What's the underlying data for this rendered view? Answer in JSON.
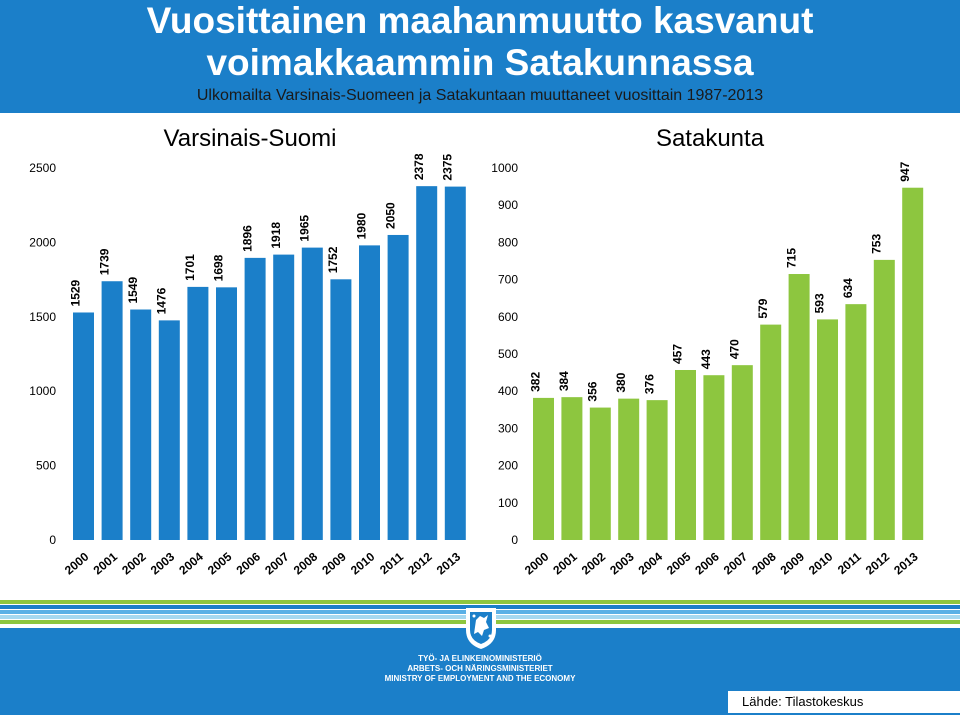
{
  "header": {
    "title_line1": "Vuosittainen maahanmuutto kasvanut",
    "title_line2": "voimakkaammin Satakunnassa",
    "subtitle": "Ulkomailta Varsinais-Suomeen ja Satakuntaan muuttaneet vuosittain 1987-2013"
  },
  "footer": {
    "ministry_fi": "TYÖ- JA ELINKEINOMINISTERIÖ",
    "ministry_sv": "ARBETS- OCH NÄRINGSMINISTERIET",
    "ministry_en": "MINISTRY OF EMPLOYMENT AND THE ECONOMY",
    "source": "Lähde: Tilastokeskus",
    "logo_icon": "finnish-lion-crest-icon",
    "stripe_colors": [
      "#8dc63f",
      "#1b7fc9",
      "#5bb0e6",
      "#a6d8f0"
    ]
  },
  "colors": {
    "header_bg": "#1b7fc9",
    "bar_blue": "#1b7fc9",
    "bar_green": "#8dc63f"
  },
  "chart_data": [
    {
      "type": "bar",
      "title": "Varsinais-Suomi",
      "categories": [
        "2000",
        "2001",
        "2002",
        "2003",
        "2004",
        "2005",
        "2006",
        "2007",
        "2008",
        "2009",
        "2010",
        "2011",
        "2012",
        "2013"
      ],
      "values": [
        1529,
        1739,
        1549,
        1476,
        1701,
        1698,
        1896,
        1918,
        1965,
        1752,
        1980,
        2050,
        2378,
        2375
      ],
      "yticks": [
        0,
        500,
        1000,
        1500,
        2000,
        2500
      ],
      "ylim": [
        0,
        2500
      ],
      "color": "#1b7fc9",
      "grid": false
    },
    {
      "type": "bar",
      "title": "Satakunta",
      "categories": [
        "2000",
        "2001",
        "2002",
        "2003",
        "2004",
        "2005",
        "2006",
        "2007",
        "2008",
        "2009",
        "2010",
        "2011",
        "2012",
        "2013"
      ],
      "values": [
        382,
        384,
        356,
        380,
        376,
        457,
        443,
        470,
        579,
        715,
        593,
        634,
        753,
        947
      ],
      "yticks": [
        0,
        100,
        200,
        300,
        400,
        500,
        600,
        700,
        800,
        900,
        1000
      ],
      "ylim": [
        0,
        1000
      ],
      "color": "#8dc63f",
      "grid": false
    }
  ]
}
